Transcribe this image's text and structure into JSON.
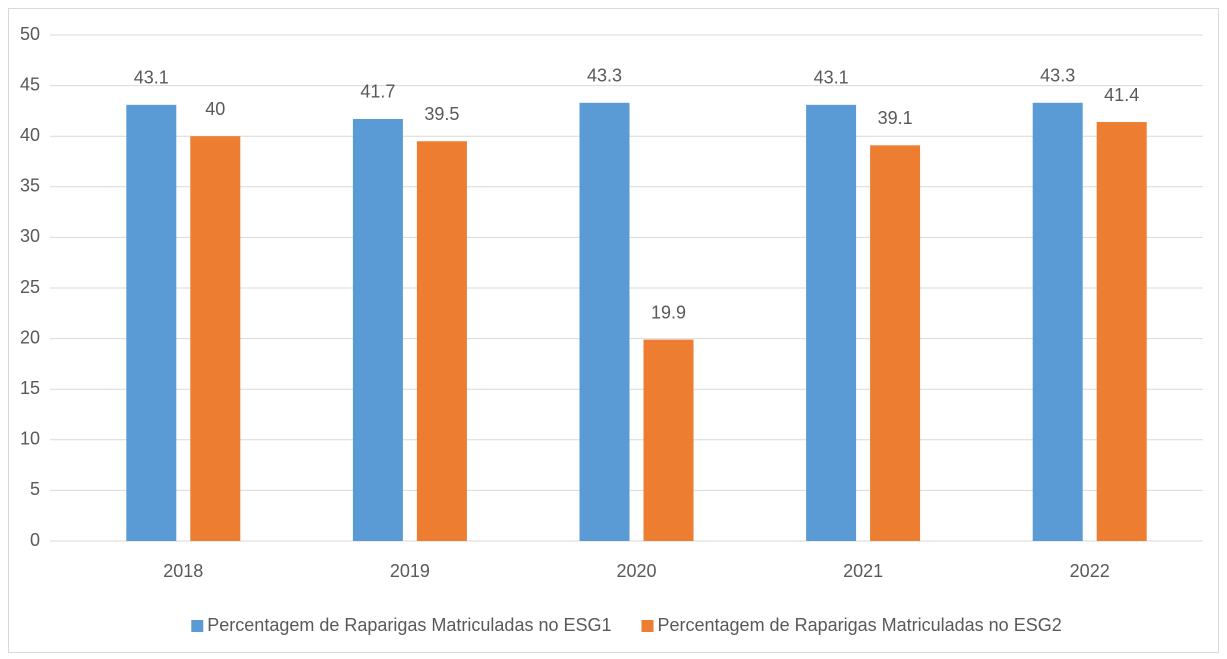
{
  "chart_data": {
    "type": "bar",
    "categories": [
      "2018",
      "2019",
      "2020",
      "2021",
      "2022"
    ],
    "series": [
      {
        "name": "Percentagem de Raparigas Matriculadas no ESG1",
        "color": "#5b9bd5",
        "values": [
          43.1,
          41.7,
          43.3,
          43.1,
          43.3
        ]
      },
      {
        "name": "Percentagem de Raparigas Matriculadas no ESG2",
        "color": "#ed7d31",
        "values": [
          40,
          39.5,
          19.9,
          39.1,
          41.4
        ]
      }
    ],
    "ylim": [
      0,
      50
    ],
    "yticks": [
      0,
      5,
      10,
      15,
      20,
      25,
      30,
      35,
      40,
      45,
      50
    ],
    "grid": true,
    "legend": "bottom"
  }
}
